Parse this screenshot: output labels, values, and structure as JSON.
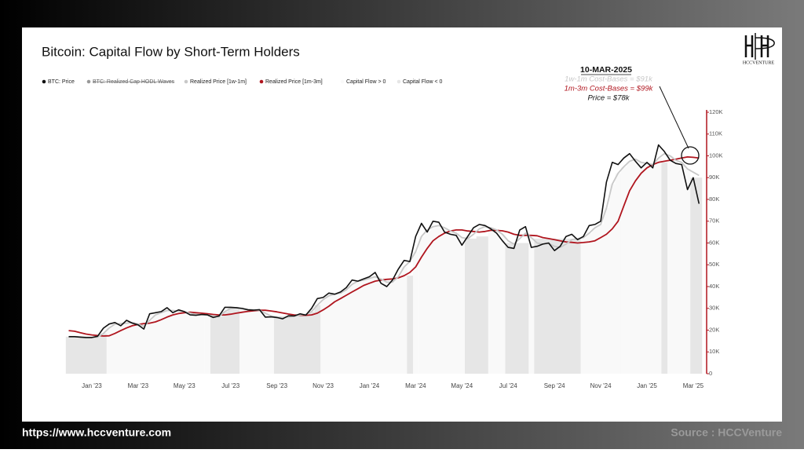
{
  "page": {
    "logo": "HCCVENTURE",
    "url": "https://www.hccventure.com",
    "source": "Source : HCCVenture"
  },
  "chart_data": {
    "type": "line",
    "title": "Bitcoin: Capital Flow by Short-Term Holders",
    "categories": [
      null,
      null,
      null,
      null,
      "Jan '23",
      null,
      null,
      null,
      null,
      null,
      null,
      null,
      "Mar '23",
      null,
      null,
      null,
      null,
      null,
      null,
      null,
      "May '23",
      null,
      null,
      null,
      null,
      null,
      null,
      null,
      "Jul '23",
      null,
      null,
      null,
      null,
      null,
      null,
      null,
      "Sep '23",
      null,
      null,
      null,
      null,
      null,
      null,
      null,
      "Nov '23",
      null,
      null,
      null,
      null,
      null,
      null,
      null,
      "Jan '24",
      null,
      null,
      null,
      null,
      null,
      null,
      null,
      "Mar '24",
      null,
      null,
      null,
      null,
      null,
      null,
      null,
      "May '24",
      null,
      null,
      null,
      null,
      null,
      null,
      null,
      "Jul '24",
      null,
      null,
      null,
      null,
      null,
      null,
      null,
      "Sep '24",
      null,
      null,
      null,
      null,
      null,
      null,
      null,
      "Nov '24",
      null,
      null,
      null,
      null,
      null,
      null,
      null,
      "Jan '25",
      null,
      null,
      null,
      null,
      null,
      null,
      null,
      "Mar '25",
      null
    ],
    "series": [
      {
        "name": "BTC: Price",
        "color": "#111111",
        "values": [
          17,
          17,
          16.8,
          16.6,
          16.6,
          17.2,
          20.9,
          22.8,
          23.5,
          22,
          24.5,
          23.2,
          22.4,
          20.5,
          27.5,
          28,
          28.5,
          30.3,
          28,
          29.3,
          28.5,
          27,
          26.8,
          27.2,
          27,
          25.8,
          26.5,
          30.5,
          30.5,
          30.3,
          29.9,
          29.3,
          29.2,
          29.4,
          26,
          26.1,
          25.8,
          25.2,
          26.6,
          26.5,
          27.5,
          26.9,
          30,
          34.5,
          35,
          37,
          36.5,
          37.5,
          39.5,
          43,
          42.5,
          43.5,
          44.5,
          46.5,
          41.5,
          40,
          43,
          48,
          52,
          51.5,
          63,
          69,
          65,
          70,
          69.5,
          65,
          64,
          63.5,
          59,
          63,
          67,
          68.5,
          68,
          66.5,
          64.5,
          61,
          58,
          57.5,
          66,
          67.5,
          58,
          58.5,
          59.5,
          60,
          56.5,
          58.5,
          63,
          64,
          61.5,
          63,
          68,
          68.5,
          70,
          88,
          97,
          96,
          99,
          101,
          97.5,
          94.5,
          97,
          94.5,
          105,
          102,
          98,
          96.5,
          96,
          84.5,
          90,
          78
        ]
      },
      {
        "name": "Realized Price [1w-1m]",
        "color": "#c8c8c8",
        "values": [
          17,
          17,
          16.9,
          16.7,
          16.6,
          16.8,
          18.5,
          21,
          22.8,
          23,
          23.2,
          23.5,
          22.8,
          21.8,
          24.5,
          27,
          28,
          29,
          29,
          28.8,
          28.5,
          27.8,
          27.2,
          27,
          27,
          26.5,
          26.2,
          28.5,
          30,
          30.3,
          30.1,
          29.6,
          29.3,
          29.2,
          27.8,
          26.5,
          26,
          25.8,
          26,
          26.4,
          27,
          27.2,
          28.5,
          31.5,
          34,
          35.8,
          36.5,
          37,
          38.5,
          41,
          42.5,
          43,
          43.8,
          44.5,
          43.5,
          42,
          42,
          44.5,
          49,
          51.5,
          56,
          63,
          66,
          67.5,
          68,
          67,
          65.5,
          64.5,
          62.5,
          62,
          64,
          66.5,
          67.5,
          67,
          66,
          64,
          61,
          59.5,
          62,
          64.5,
          62.5,
          60,
          59.5,
          59.8,
          58.5,
          58,
          59.5,
          61.5,
          62,
          62.5,
          64.5,
          67,
          68.5,
          76,
          87,
          92,
          95,
          97.5,
          98.5,
          97,
          96.5,
          96,
          99,
          101,
          100,
          98,
          97,
          94,
          92.5,
          91
        ]
      },
      {
        "name": "Realized Price [1m-3m]",
        "color": "#b0151e",
        "values": [
          19.8,
          19.5,
          18.8,
          18.2,
          17.8,
          17.5,
          17.3,
          17.4,
          18.5,
          19.8,
          21,
          22,
          22.6,
          23,
          23.2,
          23.8,
          24.8,
          26,
          27,
          27.6,
          28,
          28.2,
          28,
          27.8,
          27.5,
          27.2,
          27,
          27,
          27.3,
          27.8,
          28.2,
          28.6,
          28.9,
          29.1,
          29.1,
          28.8,
          28.4,
          27.9,
          27.4,
          27,
          26.8,
          26.8,
          27,
          27.8,
          29.3,
          31,
          33,
          34.5,
          36,
          37.5,
          39,
          40.5,
          41.5,
          42.5,
          43,
          43.3,
          43.5,
          44,
          45,
          46.5,
          49,
          53.5,
          57.5,
          61,
          63,
          64.5,
          65.5,
          66,
          66,
          65.5,
          65.3,
          65,
          65.3,
          65.8,
          65.8,
          65.6,
          65,
          64,
          63.5,
          63.5,
          63.5,
          63.3,
          62.5,
          62,
          61.5,
          61,
          60.5,
          60.3,
          60,
          60.2,
          60.5,
          61,
          62.5,
          64,
          66.5,
          70,
          77,
          84,
          88.5,
          92,
          94.5,
          96,
          97,
          97.5,
          98,
          98.5,
          99,
          99.5,
          99.3,
          99
        ]
      },
      {
        "name": "Capital Flow > 0",
        "color": "#f9f9f9",
        "type": "column",
        "values": [
          null,
          null,
          null,
          null,
          null,
          null,
          null,
          21,
          22.8,
          23,
          23.2,
          23.5,
          22.8,
          21.8,
          24.5,
          27,
          28,
          29,
          29,
          28.8,
          28.5,
          27.8,
          27.2,
          27,
          27,
          null,
          null,
          null,
          null,
          null,
          30.1,
          29.6,
          29.3,
          29.2,
          27.8,
          26.5,
          null,
          null,
          null,
          null,
          null,
          null,
          null,
          null,
          34,
          35.8,
          36.5,
          37,
          38.5,
          41,
          42.5,
          43,
          43.8,
          44.5,
          43.5,
          42,
          42,
          44.5,
          49,
          null,
          56,
          63,
          66,
          67.5,
          68,
          67,
          65.5,
          64.5,
          62.5,
          null,
          null,
          null,
          null,
          67,
          66,
          64,
          null,
          null,
          null,
          null,
          62.5,
          null,
          null,
          null,
          null,
          null,
          null,
          null,
          null,
          62.5,
          64.5,
          67,
          68.5,
          76,
          87,
          92,
          95,
          97.5,
          98.5,
          97,
          96.5,
          96,
          99,
          null,
          100,
          98,
          97,
          94,
          null,
          null
        ]
      },
      {
        "name": "Capital Flow < 0",
        "color": "#e6e6e6",
        "type": "column",
        "values": [
          17,
          17,
          16.9,
          16.7,
          16.6,
          16.8,
          18.5,
          null,
          null,
          null,
          null,
          null,
          null,
          null,
          null,
          null,
          null,
          null,
          null,
          null,
          null,
          null,
          null,
          null,
          null,
          26.5,
          26.2,
          28.5,
          30,
          30.3,
          null,
          null,
          null,
          null,
          null,
          null,
          26,
          25.8,
          26,
          26.4,
          27,
          27.2,
          28.5,
          31.5,
          null,
          null,
          null,
          null,
          null,
          null,
          null,
          null,
          null,
          null,
          null,
          null,
          null,
          null,
          null,
          45,
          null,
          null,
          null,
          null,
          null,
          null,
          null,
          null,
          null,
          62,
          62,
          63,
          63,
          null,
          null,
          null,
          60,
          60,
          60,
          60,
          null,
          62,
          62,
          62,
          62,
          62,
          62,
          62,
          62,
          null,
          null,
          null,
          null,
          null,
          null,
          null,
          null,
          null,
          null,
          null,
          null,
          null,
          null,
          97,
          null,
          null,
          null,
          null,
          90,
          90
        ]
      }
    ],
    "inactive_legend": [
      {
        "name": "BTC: Realized Cap HODL Waves",
        "color": "#999999"
      }
    ],
    "ylim": [
      0,
      120
    ],
    "yticks": [
      0,
      {
        "value": 10,
        "label": "10K"
      },
      {
        "value": 20,
        "label": "20K"
      },
      {
        "value": 30,
        "label": "30K"
      },
      {
        "value": 40,
        "label": "40K"
      },
      {
        "value": 50,
        "label": "50K"
      },
      {
        "value": 60,
        "label": "60K"
      },
      {
        "value": 70,
        "label": "70K"
      },
      {
        "value": 80,
        "label": "80K"
      },
      {
        "value": 90,
        "label": "90K"
      },
      {
        "value": 100,
        "label": "100K"
      },
      {
        "value": 110,
        "label": "110K"
      },
      {
        "value": 120,
        "label": "120K"
      }
    ],
    "y_axis_color": "#b0151e",
    "annotation": {
      "title": "10-MAR-2025",
      "lines": [
        {
          "text": "1w-1m Cost-Bases = $91k",
          "color": "#c8c8c8"
        },
        {
          "text": "1m-3m Cost-Bases = $99k",
          "color": "#b0151e"
        },
        {
          "text": "Price = $78k",
          "color": "#111111"
        }
      ]
    }
  }
}
